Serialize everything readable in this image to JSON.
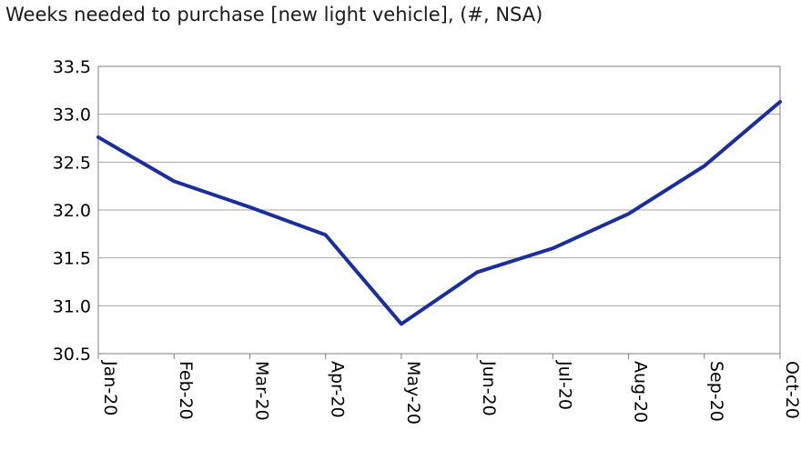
{
  "chart_data": {
    "type": "line",
    "title": "Weeks needed to purchase [new light vehicle], (#, NSA)",
    "xlabel": "",
    "ylabel": "",
    "categories": [
      "Jan-20",
      "Feb-20",
      "Mar-20",
      "Apr-20",
      "May-20",
      "Jun-20",
      "Jul-20",
      "Aug-20",
      "Sep-20",
      "Oct-20"
    ],
    "series": [
      {
        "values": [
          32.76,
          32.3,
          32.03,
          31.74,
          30.81,
          31.35,
          31.6,
          31.96,
          32.46,
          33.13
        ]
      }
    ],
    "ylim": [
      30.5,
      33.5
    ],
    "yticks": [
      "30.5",
      "31.0",
      "31.5",
      "32.0",
      "32.5",
      "33.0",
      "33.5"
    ],
    "grid": true,
    "legend": "none",
    "line_color": "#1a2e9c"
  }
}
